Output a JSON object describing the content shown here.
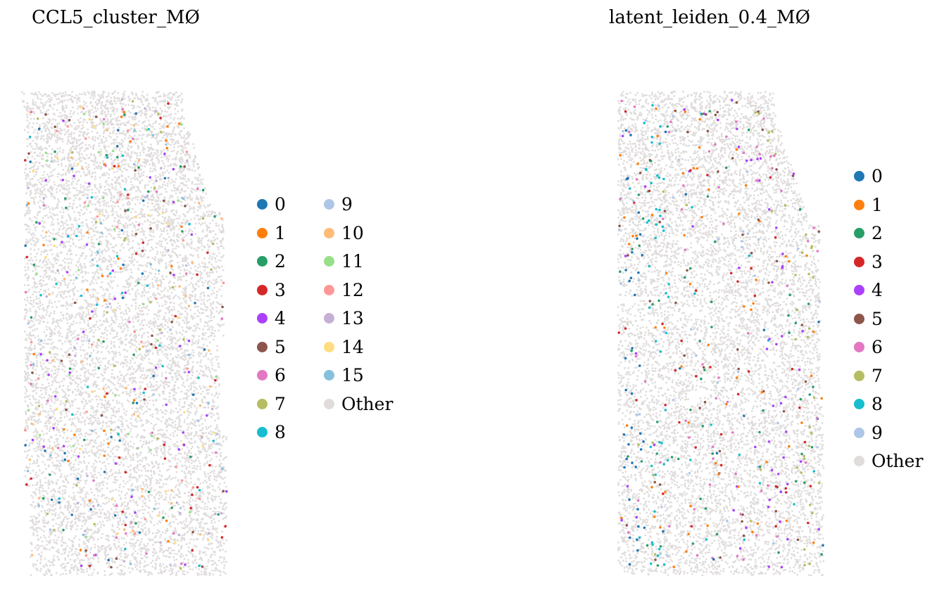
{
  "chart_data": [
    {
      "type": "scatter",
      "title": "CCL5_cluster_MØ",
      "legend_placement": "right",
      "legend_columns": 2,
      "grid": false,
      "axes_visible": false,
      "background_category": "Other",
      "categories": [
        {
          "label": "0",
          "color": "#1f77b4"
        },
        {
          "label": "1",
          "color": "#ff7f0e"
        },
        {
          "label": "2",
          "color": "#279e68"
        },
        {
          "label": "3",
          "color": "#d62728"
        },
        {
          "label": "4",
          "color": "#aa40fc"
        },
        {
          "label": "5",
          "color": "#8c564b"
        },
        {
          "label": "6",
          "color": "#e377c2"
        },
        {
          "label": "7",
          "color": "#b5bd61"
        },
        {
          "label": "8",
          "color": "#17becf"
        },
        {
          "label": "9",
          "color": "#aec7e8"
        },
        {
          "label": "10",
          "color": "#ffbb78"
        },
        {
          "label": "11",
          "color": "#98df8a"
        },
        {
          "label": "12",
          "color": "#ff9896"
        },
        {
          "label": "13",
          "color": "#c5b0d5"
        },
        {
          "label": "14",
          "color": "#ffdd80"
        },
        {
          "label": "15",
          "color": "#87c0dc"
        },
        {
          "label": "Other",
          "color": "#e0dcdc"
        }
      ]
    },
    {
      "type": "scatter",
      "title": "latent_leiden_0.4_MØ",
      "legend_placement": "right",
      "legend_columns": 1,
      "grid": false,
      "axes_visible": false,
      "background_category": "Other",
      "categories": [
        {
          "label": "0",
          "color": "#1f77b4"
        },
        {
          "label": "1",
          "color": "#ff7f0e"
        },
        {
          "label": "2",
          "color": "#279e68"
        },
        {
          "label": "3",
          "color": "#d62728"
        },
        {
          "label": "4",
          "color": "#aa40fc"
        },
        {
          "label": "5",
          "color": "#8c564b"
        },
        {
          "label": "6",
          "color": "#e377c2"
        },
        {
          "label": "7",
          "color": "#b5bd61"
        },
        {
          "label": "8",
          "color": "#17becf"
        },
        {
          "label": "9",
          "color": "#aec7e8"
        },
        {
          "label": "Other",
          "color": "#e0dcdc"
        }
      ]
    }
  ]
}
